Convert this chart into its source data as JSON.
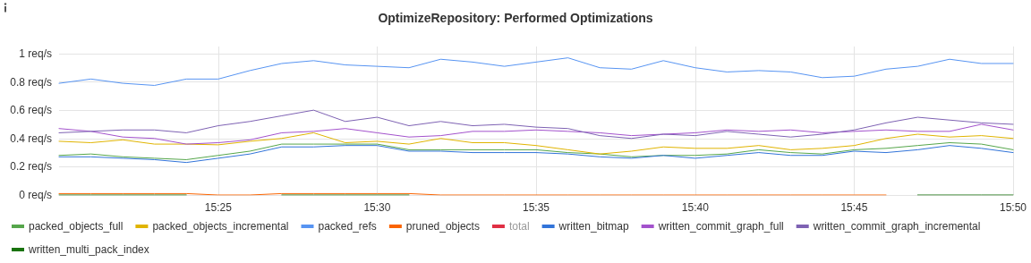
{
  "chart_data": {
    "type": "line",
    "title": "OptimizeRepository: Performed Optimizations",
    "x": [
      15.3333,
      15.35,
      15.3667,
      15.3833,
      15.4,
      15.4167,
      15.4333,
      15.45,
      15.4667,
      15.4833,
      15.5,
      15.5167,
      15.5333,
      15.55,
      15.5667,
      15.5833,
      15.6,
      15.6167,
      15.6333,
      15.65,
      15.6667,
      15.6833,
      15.7,
      15.7167,
      15.7333,
      15.75,
      15.7667,
      15.7833,
      15.8,
      15.8167,
      15.8333
    ],
    "xlim": [
      15.3333,
      15.8333
    ],
    "xticks": [
      {
        "value": 15.4167,
        "label": "15:25"
      },
      {
        "value": 15.5,
        "label": "15:30"
      },
      {
        "value": 15.5833,
        "label": "15:35"
      },
      {
        "value": 15.6667,
        "label": "15:40"
      },
      {
        "value": 15.75,
        "label": "15:45"
      },
      {
        "value": 15.8333,
        "label": "15:50"
      }
    ],
    "ylim": [
      0,
      1.05
    ],
    "yticks": [
      {
        "value": 0,
        "label": "0 req/s"
      },
      {
        "value": 0.2,
        "label": "0.2 req/s"
      },
      {
        "value": 0.4,
        "label": "0.4 req/s"
      },
      {
        "value": 0.6,
        "label": "0.6 req/s"
      },
      {
        "value": 0.8,
        "label": "0.8 req/s"
      },
      {
        "value": 1,
        "label": "1 req/s"
      }
    ],
    "series": [
      {
        "name": "packed_objects_full",
        "color": "#56a64b",
        "values": [
          0.28,
          0.29,
          0.27,
          0.26,
          0.25,
          0.28,
          0.31,
          0.36,
          0.36,
          0.36,
          0.36,
          0.32,
          0.32,
          0.32,
          0.32,
          0.32,
          0.3,
          0.29,
          0.27,
          0.28,
          0.28,
          0.29,
          0.32,
          0.3,
          0.29,
          0.32,
          0.33,
          0.35,
          0.37,
          0.36,
          0.32
        ]
      },
      {
        "name": "packed_objects_incremental",
        "color": "#e0b400",
        "values": [
          0.38,
          0.37,
          0.39,
          0.36,
          0.36,
          0.355,
          0.38,
          0.4,
          0.44,
          0.37,
          0.38,
          0.36,
          0.4,
          0.37,
          0.37,
          0.35,
          0.32,
          0.29,
          0.31,
          0.34,
          0.33,
          0.33,
          0.35,
          0.32,
          0.33,
          0.35,
          0.4,
          0.43,
          0.41,
          0.42,
          0.4
        ]
      },
      {
        "name": "packed_refs",
        "color": "#5794f2",
        "values": [
          0.79,
          0.82,
          0.79,
          0.775,
          0.82,
          0.82,
          0.88,
          0.93,
          0.95,
          0.92,
          0.91,
          0.9,
          0.96,
          0.94,
          0.91,
          0.94,
          0.97,
          0.9,
          0.89,
          0.95,
          0.9,
          0.87,
          0.88,
          0.87,
          0.83,
          0.84,
          0.89,
          0.91,
          0.96,
          0.93,
          0.93
        ]
      },
      {
        "name": "pruned_objects",
        "color": "#fa6400",
        "values": [
          0.01,
          0.01,
          0.01,
          0.01,
          0.01,
          0,
          0,
          0.01,
          0.01,
          0.01,
          0.01,
          0.01,
          0,
          0,
          0,
          0,
          0,
          0,
          0,
          0,
          0,
          0,
          0,
          0,
          0,
          0,
          0,
          null,
          null,
          null,
          null
        ]
      },
      {
        "name": "total",
        "color": "#e02f44",
        "values": [
          null,
          null,
          null,
          null,
          null,
          null,
          null,
          null,
          null,
          null,
          null,
          null,
          null,
          null,
          null,
          null,
          null,
          null,
          null,
          null,
          null,
          null,
          null,
          null,
          null,
          null,
          null,
          null,
          null,
          null,
          null
        ]
      },
      {
        "name": "written_bitmap",
        "color": "#3274d9",
        "values": [
          0.27,
          0.27,
          0.26,
          0.25,
          0.23,
          0.26,
          0.29,
          0.34,
          0.34,
          0.35,
          0.35,
          0.31,
          0.31,
          0.3,
          0.3,
          0.3,
          0.29,
          0.27,
          0.26,
          0.28,
          0.26,
          0.28,
          0.3,
          0.28,
          0.28,
          0.31,
          0.3,
          0.32,
          0.35,
          0.33,
          0.3
        ]
      },
      {
        "name": "written_commit_graph_full",
        "color": "#a352cc",
        "values": [
          0.47,
          0.45,
          0.41,
          0.4,
          0.36,
          0.37,
          0.39,
          0.44,
          0.45,
          0.47,
          0.44,
          0.41,
          0.42,
          0.45,
          0.45,
          0.46,
          0.45,
          0.44,
          0.42,
          0.43,
          0.44,
          0.46,
          0.45,
          0.46,
          0.44,
          0.45,
          0.46,
          0.45,
          0.45,
          0.5,
          0.46
        ]
      },
      {
        "name": "written_commit_graph_incremental",
        "color": "#7e62b3",
        "values": [
          0.44,
          0.45,
          0.46,
          0.46,
          0.44,
          0.49,
          0.52,
          0.56,
          0.6,
          0.52,
          0.55,
          0.49,
          0.52,
          0.49,
          0.5,
          0.48,
          0.47,
          0.42,
          0.4,
          0.43,
          0.42,
          0.45,
          0.43,
          0.41,
          0.43,
          0.46,
          0.51,
          0.55,
          0.53,
          0.51,
          0.5
        ]
      },
      {
        "name": "written_multi_pack_index",
        "color": "#19730e",
        "values": [
          0,
          0,
          0,
          0,
          0,
          null,
          null,
          0,
          0,
          0,
          0,
          0,
          null,
          null,
          null,
          null,
          null,
          null,
          null,
          null,
          null,
          null,
          null,
          null,
          null,
          null,
          null,
          0,
          0,
          0,
          0
        ]
      }
    ],
    "grid": true,
    "legend": "bottom",
    "marker": "none",
    "line_style": "solid"
  }
}
